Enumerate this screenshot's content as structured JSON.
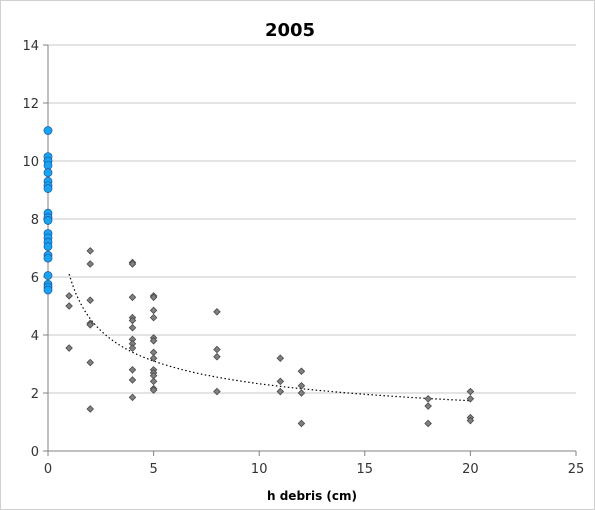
{
  "chart_data": {
    "type": "scatter",
    "title": "2005",
    "xlabel": "h debris (cm)",
    "ylabel": "",
    "xlim": [
      0,
      25
    ],
    "ylim": [
      0,
      14
    ],
    "x_ticks": [
      0,
      5,
      10,
      15,
      20,
      25
    ],
    "y_ticks": [
      0,
      2,
      4,
      6,
      8,
      10,
      12,
      14
    ],
    "grid": "horizontal",
    "legend": "none",
    "series": [
      {
        "marker": "circle",
        "color": "#19A3F0",
        "points": [
          [
            0,
            11.05
          ],
          [
            0,
            10.15
          ],
          [
            0,
            10.0
          ],
          [
            0,
            9.85
          ],
          [
            0,
            9.6
          ],
          [
            0,
            9.3
          ],
          [
            0,
            9.15
          ],
          [
            0,
            9.05
          ],
          [
            0,
            8.2
          ],
          [
            0,
            8.05
          ],
          [
            0,
            7.95
          ],
          [
            0,
            7.5
          ],
          [
            0,
            7.35
          ],
          [
            0,
            7.2
          ],
          [
            0,
            7.05
          ],
          [
            0,
            6.75
          ],
          [
            0,
            6.65
          ],
          [
            0,
            6.05
          ],
          [
            0,
            5.75
          ],
          [
            0,
            5.65
          ],
          [
            0,
            5.55
          ]
        ]
      },
      {
        "marker": "diamond",
        "color": "#808080",
        "points": [
          [
            1,
            5.35
          ],
          [
            1,
            5.0
          ],
          [
            1,
            3.55
          ],
          [
            2,
            6.9
          ],
          [
            2,
            6.45
          ],
          [
            2,
            5.2
          ],
          [
            2,
            4.4
          ],
          [
            2,
            4.35
          ],
          [
            2,
            3.05
          ],
          [
            2,
            1.45
          ],
          [
            4,
            6.5
          ],
          [
            4,
            6.45
          ],
          [
            4,
            5.3
          ],
          [
            4,
            4.6
          ],
          [
            4,
            4.5
          ],
          [
            4,
            4.25
          ],
          [
            4,
            3.85
          ],
          [
            4,
            3.7
          ],
          [
            4,
            3.55
          ],
          [
            4,
            2.8
          ],
          [
            4,
            2.45
          ],
          [
            4,
            1.85
          ],
          [
            5,
            5.35
          ],
          [
            5,
            5.3
          ],
          [
            5,
            4.85
          ],
          [
            5,
            4.6
          ],
          [
            5,
            3.9
          ],
          [
            5,
            3.8
          ],
          [
            5,
            3.4
          ],
          [
            5,
            3.2
          ],
          [
            5,
            2.8
          ],
          [
            5,
            2.7
          ],
          [
            5,
            2.6
          ],
          [
            5,
            2.4
          ],
          [
            5,
            2.15
          ],
          [
            5,
            2.1
          ],
          [
            8,
            4.8
          ],
          [
            8,
            3.5
          ],
          [
            8,
            3.25
          ],
          [
            8,
            2.05
          ],
          [
            11,
            3.2
          ],
          [
            11,
            2.4
          ],
          [
            11,
            2.05
          ],
          [
            12,
            2.75
          ],
          [
            12,
            2.25
          ],
          [
            12,
            2.0
          ],
          [
            12,
            0.95
          ],
          [
            18,
            1.8
          ],
          [
            18,
            1.55
          ],
          [
            18,
            0.95
          ],
          [
            20,
            2.05
          ],
          [
            20,
            1.8
          ],
          [
            20,
            1.15
          ],
          [
            20,
            1.05
          ]
        ]
      }
    ],
    "trendline": {
      "type": "power",
      "style": "dotted",
      "color": "#000000",
      "a": 6.1,
      "b": -0.42,
      "x_from": 1,
      "x_to": 20
    }
  }
}
